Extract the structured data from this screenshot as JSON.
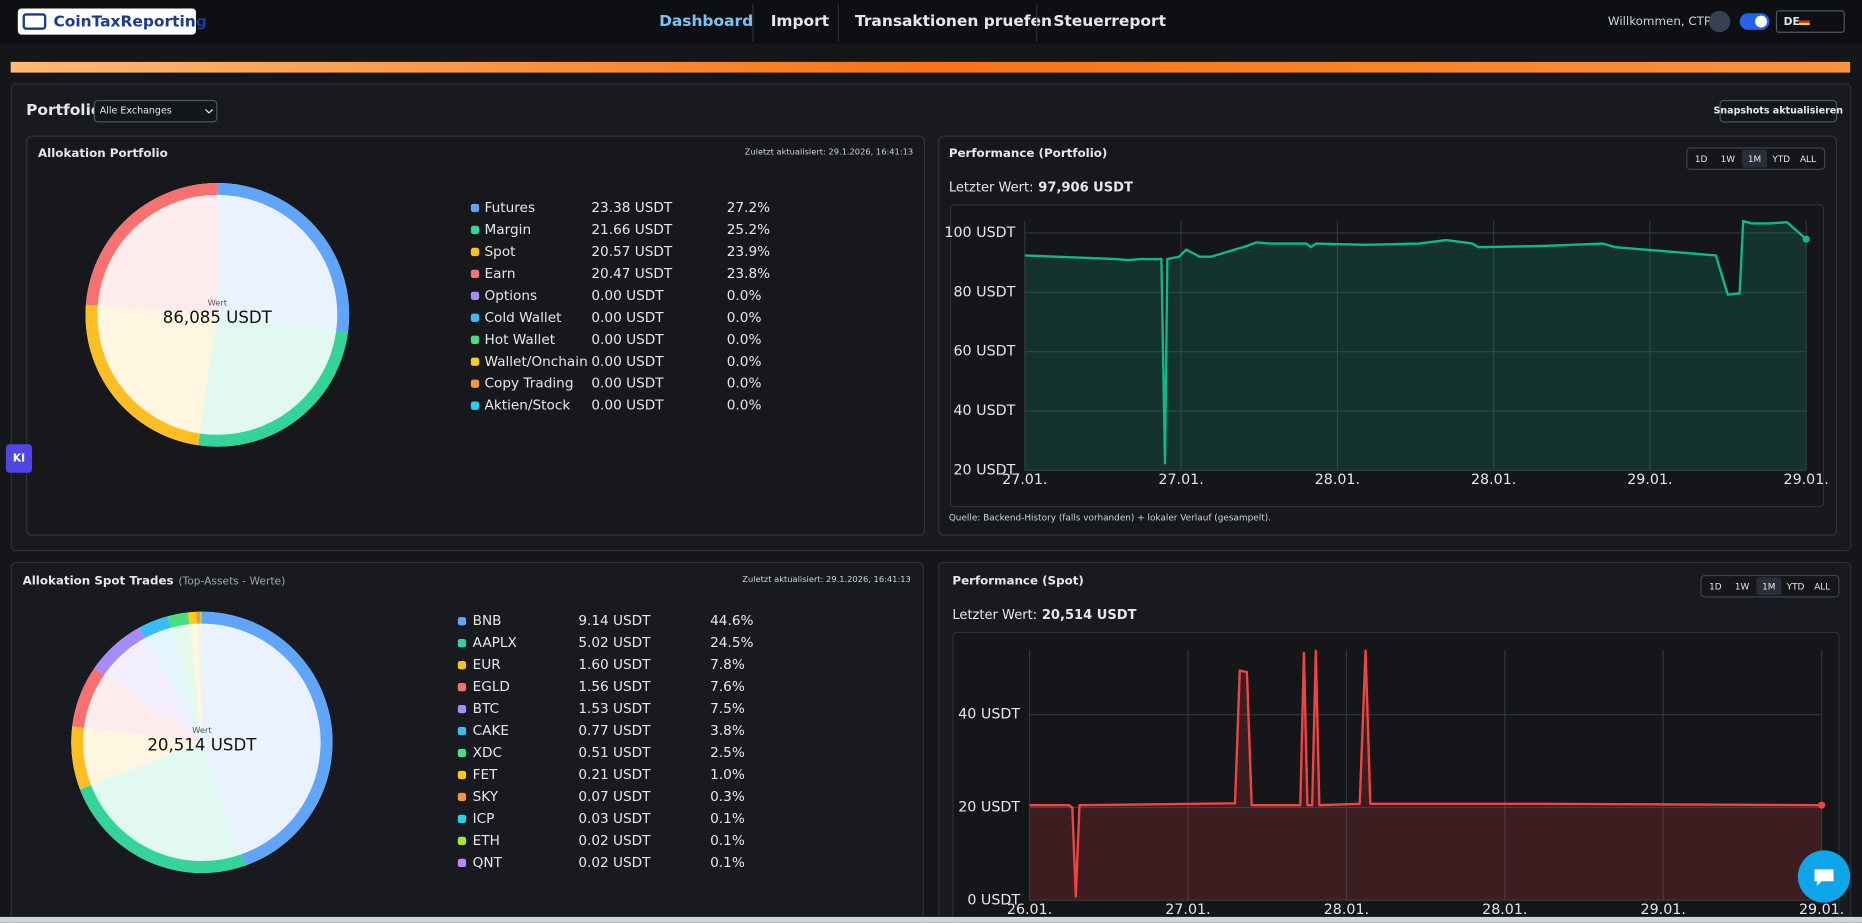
{
  "nav": {
    "logo": "CoinTaxReporting",
    "links": [
      "Dashboard",
      "Import",
      "Transaktionen pruefen",
      "Steuerreport"
    ],
    "welcome": "Willkommen, CTR",
    "language": "DE"
  },
  "ki_button": "KI",
  "portfolio": {
    "title": "Portfolio",
    "exchange_select": "Alle Exchanges",
    "refresh_button": "Snapshots aktualisieren"
  },
  "chart_data": [
    {
      "type": "pie",
      "title": "Allokation Portfolio",
      "updated": "Zuletzt aktualisiert: 29.1.2026, 16:41:13",
      "center_label": "Wert",
      "center_value": "86,085 USDT",
      "categories": [
        "Futures",
        "Margin",
        "Spot",
        "Earn",
        "Options",
        "Cold Wallet",
        "Hot Wallet",
        "Wallet/Onchain",
        "Copy Trading",
        "Aktien/Stock"
      ],
      "colors": [
        "#60a5fa",
        "#34d399",
        "#fbbf24",
        "#f87171",
        "#a78bfa",
        "#38bdf8",
        "#4ade80",
        "#facc15",
        "#fb923c",
        "#22d3ee"
      ],
      "values": [
        27.2,
        25.2,
        23.9,
        23.8,
        0.0,
        0.0,
        0.0,
        0.0,
        0.0,
        0.0
      ],
      "value_labels": [
        "27.2%",
        "25.2%",
        "23.9%",
        "23.8%",
        "0.0%",
        "0.0%",
        "0.0%",
        "0.0%",
        "0.0%",
        "0.0%"
      ],
      "amounts": [
        23.38,
        21.66,
        20.57,
        20.47,
        0,
        0,
        0,
        0,
        0,
        0
      ],
      "amount_labels": [
        "23.38 USDT",
        "21.66 USDT",
        "20.57 USDT",
        "20.47 USDT",
        "0.00 USDT",
        "0.00 USDT",
        "0.00 USDT",
        "0.00 USDT",
        "0.00 USDT",
        "0.00 USDT"
      ]
    },
    {
      "type": "line",
      "title": "Performance (Portfolio)",
      "ranges": [
        "1D",
        "1W",
        "1M",
        "YTD",
        "ALL"
      ],
      "active_range": "1M",
      "last_label": "Letzter Wert:",
      "last_value": "97,906 USDT",
      "note": "Quelle: Backend-History (falls vorhanden) + lokaler Verlauf (gesampelt).",
      "x": [
        0,
        0.585,
        0.661,
        0.737,
        0.874,
        0.897,
        0.912,
        0.988,
        1.033,
        1.117,
        1.193,
        1.345,
        1.421,
        1.482,
        1.573,
        1.801,
        1.831,
        1.862,
        2.181,
        2.523,
        2.698,
        2.865,
        2.903,
        3.321,
        3.701,
        3.777,
        4.422,
        4.498,
        4.574,
        4.597,
        4.65,
        4.764,
        4.878,
        5
      ],
      "series": [
        {
          "color": "#10b981",
          "values": [
            92.4,
            91.2,
            90.8,
            91.2,
            91.2,
            22.4,
            91.2,
            92,
            94.4,
            92,
            92,
            94.4,
            95.6,
            96.8,
            96.4,
            96.4,
            95.2,
            96.4,
            96,
            96.4,
            97.6,
            96.4,
            95.2,
            95.6,
            96.4,
            95.2,
            92.4,
            79.2,
            79.6,
            104,
            103.2,
            103.2,
            103.6,
            97.9
          ]
        }
      ],
      "xlim": [
        0,
        5
      ],
      "xticks": [
        {
          "value": 0,
          "label": "27.01."
        },
        {
          "value": 1,
          "label": "27.01."
        },
        {
          "value": 2,
          "label": "28.01."
        },
        {
          "value": 3,
          "label": "28.01."
        },
        {
          "value": 4,
          "label": "29.01."
        },
        {
          "value": 5,
          "label": "29.01."
        }
      ],
      "ylim": [
        20,
        104
      ],
      "yticks": [
        {
          "value": 20,
          "label": "20 USDT"
        },
        {
          "value": 40,
          "label": "40 USDT"
        },
        {
          "value": 60,
          "label": "60 USDT"
        },
        {
          "value": 80,
          "label": "80 USDT"
        },
        {
          "value": 100,
          "label": "100 USDT"
        }
      ],
      "grid": true
    },
    {
      "type": "pie",
      "title": "Allokation Spot Trades",
      "subtitle": "(Top-Assets - Werte)",
      "updated": "Zuletzt aktualisiert: 29.1.2026, 16:41:13",
      "center_label": "Wert",
      "center_value": "20,514 USDT",
      "categories": [
        "BNB",
        "AAPLX",
        "EUR",
        "EGLD",
        "BTC",
        "CAKE",
        "XDC",
        "FET",
        "SKY",
        "ICP",
        "ETH",
        "QNT"
      ],
      "colors": [
        "#60a5fa",
        "#34d399",
        "#fbbf24",
        "#f87171",
        "#a78bfa",
        "#38bdf8",
        "#4ade80",
        "#facc15",
        "#fb923c",
        "#22d3ee",
        "#a3e635",
        "#c084fc"
      ],
      "values": [
        44.6,
        24.5,
        7.8,
        7.6,
        7.5,
        3.8,
        2.5,
        1.0,
        0.3,
        0.1,
        0.1,
        0.1
      ],
      "value_labels": [
        "44.6%",
        "24.5%",
        "7.8%",
        "7.6%",
        "7.5%",
        "3.8%",
        "2.5%",
        "1.0%",
        "0.3%",
        "0.1%",
        "0.1%",
        "0.1%"
      ],
      "amounts": [
        9.14,
        5.02,
        1.6,
        1.56,
        1.53,
        0.77,
        0.51,
        0.21,
        0.07,
        0.03,
        0.02,
        0.02
      ],
      "amount_labels": [
        "9.14 USDT",
        "5.02 USDT",
        "1.60 USDT",
        "1.56 USDT",
        "1.53 USDT",
        "0.77 USDT",
        "0.51 USDT",
        "0.21 USDT",
        "0.07 USDT",
        "0.03 USDT",
        "0.02 USDT",
        "0.02 USDT"
      ]
    },
    {
      "type": "line",
      "title": "Performance (Spot)",
      "ranges": [
        "1D",
        "1W",
        "1M",
        "YTD",
        "ALL"
      ],
      "active_range": "1M",
      "last_label": "Letzter Wert:",
      "last_value": "20,514 USDT",
      "x": [
        0,
        0.247,
        0.27,
        0.292,
        0.315,
        1.297,
        1.327,
        1.372,
        1.402,
        1.709,
        1.732,
        1.754,
        1.784,
        1.807,
        1.829,
        2.084,
        2.121,
        2.151,
        3.246,
        5
      ],
      "series": [
        {
          "color": "#ef4444",
          "values": [
            20.5,
            20.5,
            20,
            0.8,
            20.5,
            20.9,
            49.5,
            49.2,
            20.5,
            20.5,
            53.3,
            20.5,
            20.5,
            53.8,
            20.5,
            20.8,
            53.8,
            20.8,
            20.8,
            20.5
          ]
        }
      ],
      "xlim": [
        0,
        5
      ],
      "xticks": [
        {
          "value": 0,
          "label": "26.01."
        },
        {
          "value": 1,
          "label": "27.01."
        },
        {
          "value": 2,
          "label": "28.01."
        },
        {
          "value": 3,
          "label": "28.01."
        },
        {
          "value": 4,
          "label": "29.01."
        },
        {
          "value": 5,
          "label": "29.01."
        }
      ],
      "ylim": [
        0,
        54
      ],
      "yticks": [
        {
          "value": 0,
          "label": "0 USDT"
        },
        {
          "value": 20,
          "label": "20 USDT"
        },
        {
          "value": 40,
          "label": "40 USDT"
        }
      ],
      "grid": true
    }
  ]
}
